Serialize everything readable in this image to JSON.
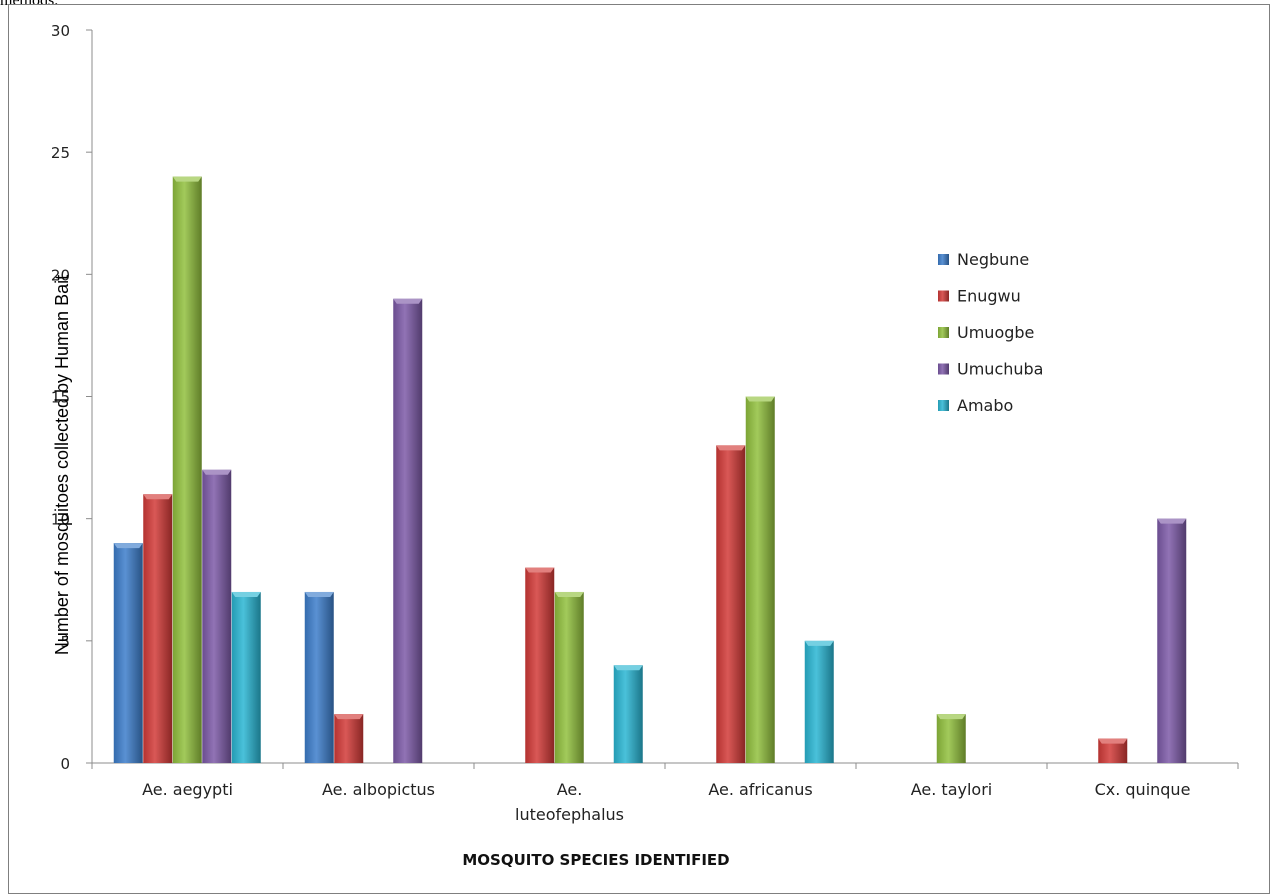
{
  "page": {
    "top_text": "methods."
  },
  "chart_data": {
    "type": "bar",
    "title": "",
    "xlabel": "MOSQUITO SPECIES IDENTIFIED",
    "ylabel": "Number of mosquitoes collected by Human Bait",
    "ylim": [
      0,
      30
    ],
    "yticks": [
      0,
      5,
      10,
      15,
      20,
      25,
      30
    ],
    "grid": false,
    "legend_position": "right",
    "categories": [
      [
        "Ae. aegypti"
      ],
      [
        "Ae. albopictus"
      ],
      [
        "Ae.",
        "luteofephalus"
      ],
      [
        "Ae. africanus"
      ],
      [
        "Ae. taylori"
      ],
      [
        "Cx. quinque"
      ]
    ],
    "series": [
      {
        "name": "Negbune",
        "color": "#3d7ecb",
        "values": [
          9,
          7,
          0,
          0,
          0,
          0
        ]
      },
      {
        "name": "Enugwu",
        "color": "#d23b38",
        "values": [
          11,
          2,
          8,
          13,
          0,
          1
        ]
      },
      {
        "name": "Umuogbe",
        "color": "#92c13e",
        "values": [
          24,
          0,
          7,
          15,
          2,
          0
        ]
      },
      {
        "name": "Umuchuba",
        "color": "#7d5aa8",
        "values": [
          12,
          19,
          0,
          0,
          0,
          10
        ]
      },
      {
        "name": "Amabo",
        "color": "#2ab6d3",
        "values": [
          7,
          0,
          4,
          5,
          0,
          0
        ]
      }
    ]
  }
}
